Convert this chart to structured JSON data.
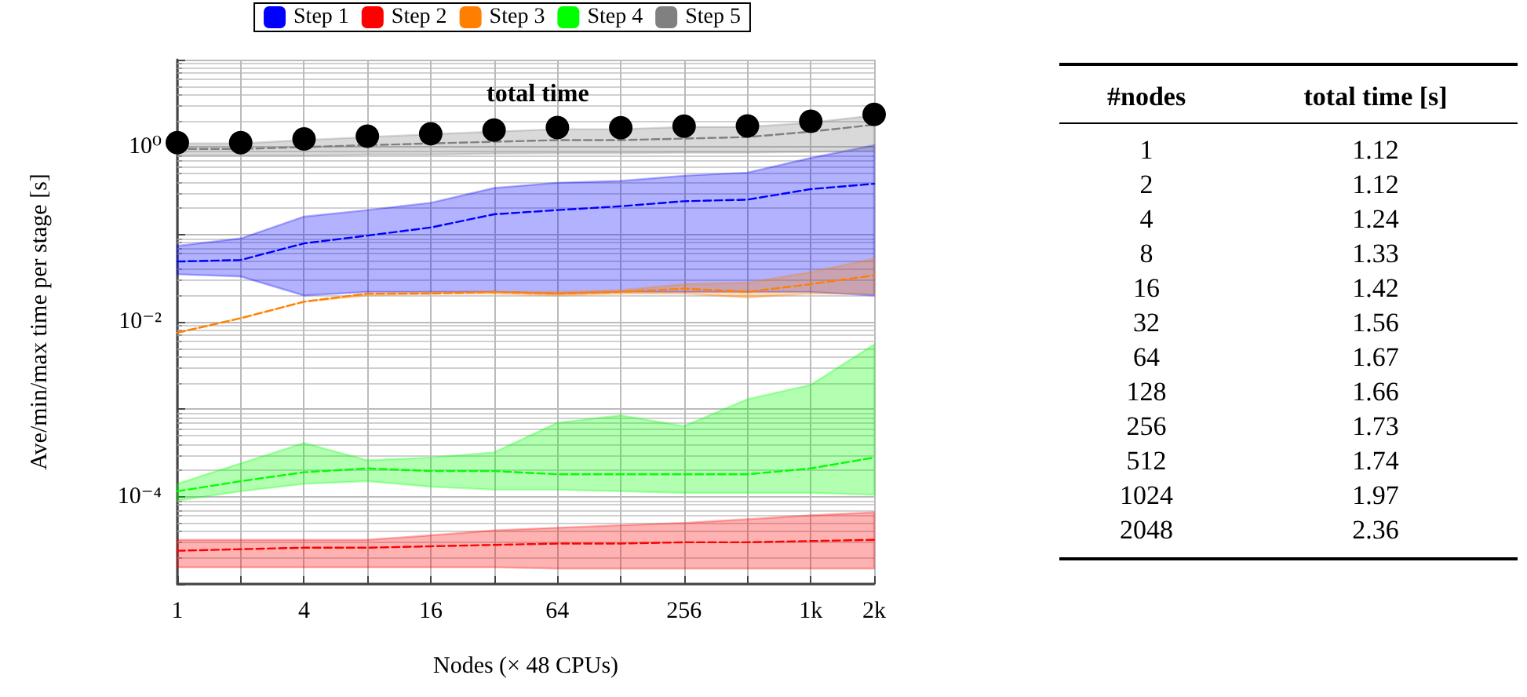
{
  "chart_data": [
    {
      "type": "line",
      "xlabel": "Nodes (× 48 CPUs)",
      "ylabel": "Ave/min/max time per stage [s]",
      "log": "xy",
      "grid": true,
      "legend": "top",
      "line_style": "dashed",
      "x": [
        1,
        2,
        4,
        8,
        16,
        32,
        64,
        128,
        256,
        512,
        1024,
        2048
      ],
      "xlim": [
        1,
        2048
      ],
      "xticks": [
        1,
        {
          "value": 2,
          "label": null
        },
        4,
        {
          "value": 8,
          "label": null
        },
        16,
        {
          "value": 32,
          "label": null
        },
        64,
        {
          "value": 128,
          "label": null
        },
        256,
        {
          "value": 512,
          "label": null
        },
        {
          "value": 1024,
          "label": "1k"
        },
        {
          "value": 2048,
          "label": "2k"
        }
      ],
      "ylim": [
        1e-05,
        10
      ],
      "yticks": [
        {
          "value": 1e-05,
          "label": null
        },
        {
          "value": 0.0001,
          "label": "10⁻⁴"
        },
        {
          "value": 0.001,
          "label": null
        },
        {
          "value": 0.01,
          "label": "10⁻²"
        },
        {
          "value": 0.1,
          "label": null
        },
        {
          "value": 1,
          "label": "10⁰"
        },
        {
          "value": 10,
          "label": null
        }
      ],
      "annotations": [
        "total time"
      ],
      "series": [
        {
          "name": "Step 1",
          "color": "#0000ff",
          "values": [
            0.049,
            0.051,
            0.079,
            0.097,
            0.12,
            0.17,
            0.19,
            0.21,
            0.24,
            0.25,
            0.33,
            0.38
          ],
          "lower": [
            0.035,
            0.033,
            0.02,
            0.022,
            0.022,
            0.022,
            0.021,
            0.022,
            0.022,
            0.022,
            0.022,
            0.02
          ],
          "upper": [
            0.074,
            0.09,
            0.16,
            0.19,
            0.23,
            0.34,
            0.39,
            0.41,
            0.47,
            0.51,
            0.75,
            1.05
          ]
        },
        {
          "name": "Step 2",
          "color": "#ff0000",
          "values": [
            2.4e-05,
            2.5e-05,
            2.6e-05,
            2.6e-05,
            2.7e-05,
            2.8e-05,
            2.9e-05,
            2.9e-05,
            3e-05,
            3e-05,
            3.1e-05,
            3.2e-05
          ],
          "lower": [
            1.55e-05,
            1.55e-05,
            1.55e-05,
            1.55e-05,
            1.55e-05,
            1.55e-05,
            1.5e-05,
            1.5e-05,
            1.5e-05,
            1.5e-05,
            1.5e-05,
            1.5e-05
          ],
          "upper": [
            3.2e-05,
            3.2e-05,
            3.2e-05,
            3.2e-05,
            3.6e-05,
            4.1e-05,
            4.4e-05,
            4.7e-05,
            5e-05,
            5.5e-05,
            6.1e-05,
            6.6e-05
          ]
        },
        {
          "name": "Step 3",
          "color": "#ff8000",
          "values": [
            0.0075,
            0.011,
            0.017,
            0.021,
            0.021,
            0.022,
            0.021,
            0.022,
            0.024,
            0.022,
            0.027,
            0.034
          ],
          "lower": [
            0.0075,
            0.011,
            0.017,
            0.02,
            0.021,
            0.021,
            0.02,
            0.021,
            0.021,
            0.019,
            0.021,
            0.021
          ],
          "upper": [
            0.0075,
            0.011,
            0.017,
            0.021,
            0.022,
            0.022,
            0.022,
            0.023,
            0.027,
            0.028,
            0.037,
            0.053
          ]
        },
        {
          "name": "Step 4",
          "color": "#00ff00",
          "values": [
            0.000115,
            0.00015,
            0.00019,
            0.00021,
            0.000196,
            0.000196,
            0.00018,
            0.00018,
            0.00018,
            0.00018,
            0.00021,
            0.00028
          ],
          "lower": [
            9e-05,
            0.000115,
            0.00014,
            0.00015,
            0.00013,
            0.00012,
            0.00012,
            0.000115,
            0.00011,
            0.00011,
            0.00011,
            0.000105
          ],
          "upper": [
            0.00014,
            0.00024,
            0.00041,
            0.00026,
            0.00028,
            0.00032,
            0.0007,
            0.00085,
            0.00064,
            0.0013,
            0.0019,
            0.0055
          ]
        },
        {
          "name": "Step 5",
          "color": "#808080",
          "values": [
            0.95,
            0.95,
            1.0,
            1.05,
            1.1,
            1.15,
            1.2,
            1.2,
            1.25,
            1.3,
            1.5,
            1.8
          ],
          "lower": [
            0.8,
            0.8,
            0.8,
            0.82,
            0.82,
            0.84,
            0.85,
            0.85,
            0.86,
            0.86,
            0.88,
            0.9
          ],
          "upper": [
            1.1,
            1.1,
            1.2,
            1.3,
            1.4,
            1.5,
            1.6,
            1.6,
            1.7,
            1.7,
            1.9,
            2.3
          ]
        },
        {
          "type": "scatter",
          "marker": "circle",
          "color": "#000000",
          "values": [
            1.12,
            1.12,
            1.24,
            1.33,
            1.42,
            1.56,
            1.67,
            1.66,
            1.73,
            1.74,
            1.97,
            2.36
          ]
        }
      ]
    },
    {
      "type": "other",
      "xlabel": "#nodes",
      "ylabel": "total time [s]",
      "data_labels": true,
      "categories": [
        "1",
        "2",
        "4",
        "8",
        "16",
        "32",
        "64",
        "128",
        "256",
        "512",
        "1024",
        "2048"
      ],
      "values": [
        1.12,
        1.12,
        1.24,
        1.33,
        1.42,
        1.56,
        1.67,
        1.66,
        1.73,
        1.74,
        1.97,
        2.36
      ]
    }
  ]
}
